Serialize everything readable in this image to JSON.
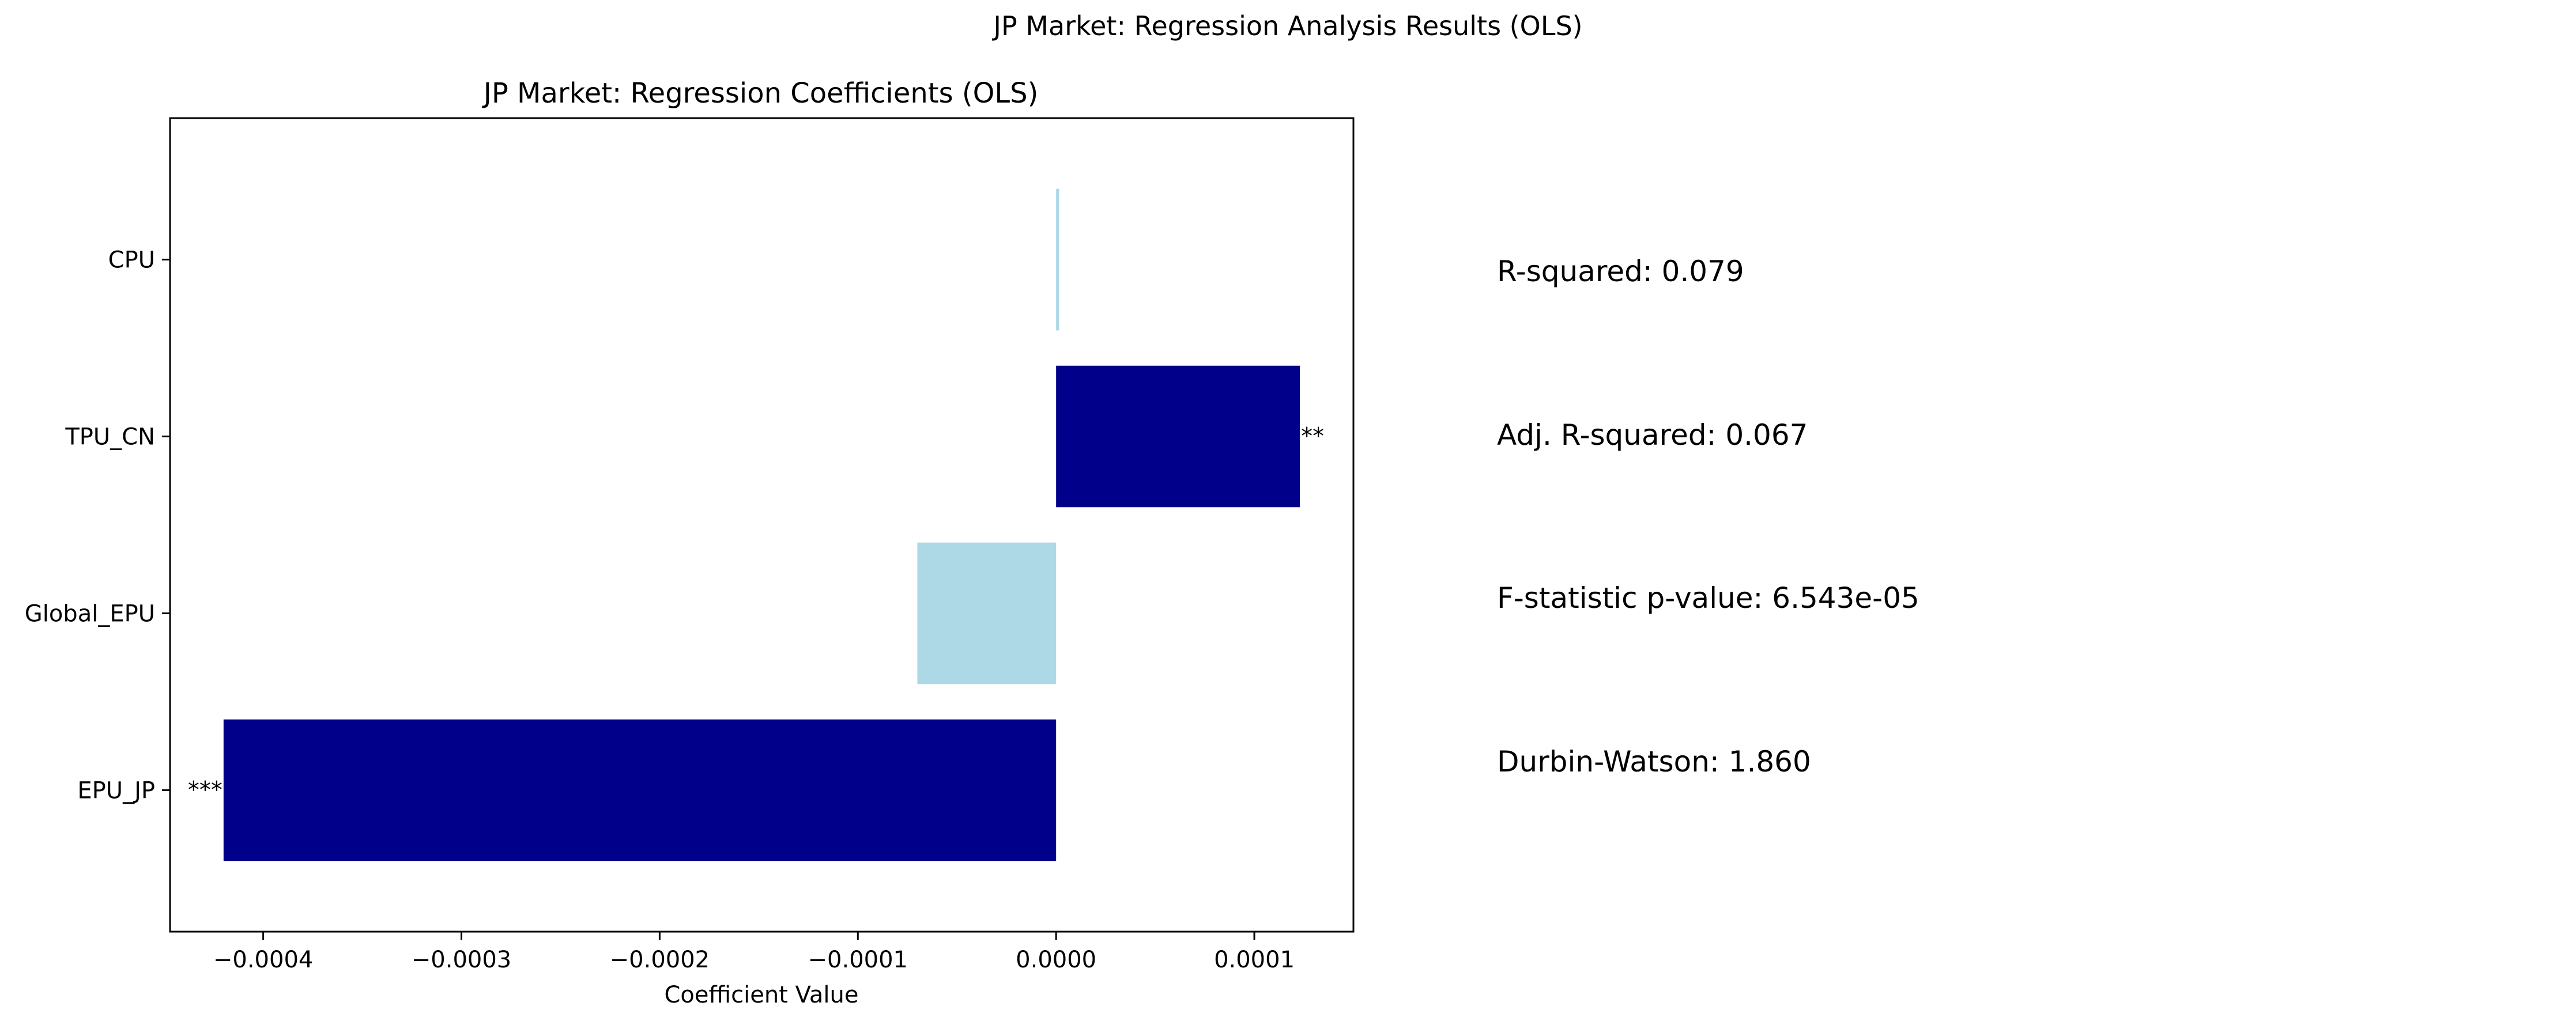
{
  "figure": {
    "suptitle": "JP Market: Regression Analysis Results (OLS)"
  },
  "chart_data": {
    "type": "bar",
    "orientation": "horizontal",
    "title": "JP Market: Regression Coefficients (OLS)",
    "xlabel": "Coefficient Value",
    "ylabel": "",
    "categories": [
      "EPU_JP",
      "Global_EPU",
      "TPU_CN",
      "CPU"
    ],
    "values": [
      -0.00042,
      -7e-05,
      0.000123,
      1.5e-06
    ],
    "significance": [
      "***",
      "",
      "**",
      ""
    ],
    "colors": [
      "#00008b",
      "#add8e6",
      "#00008b",
      "#add8e6"
    ],
    "xlim": [
      -0.000447,
      0.00015
    ],
    "xticks": [
      -0.0004,
      -0.0003,
      -0.0002,
      -0.0001,
      0.0,
      0.0001
    ],
    "xtick_labels": [
      "−0.0004",
      "−0.0003",
      "−0.0002",
      "−0.0001",
      "0.0000",
      "0.0001"
    ],
    "grid": false,
    "legend": "none"
  },
  "stats": [
    "R-squared: 0.079",
    "Adj. R-squared: 0.067",
    "F-statistic p-value: 6.543e-05",
    "Durbin-Watson: 1.860"
  ]
}
